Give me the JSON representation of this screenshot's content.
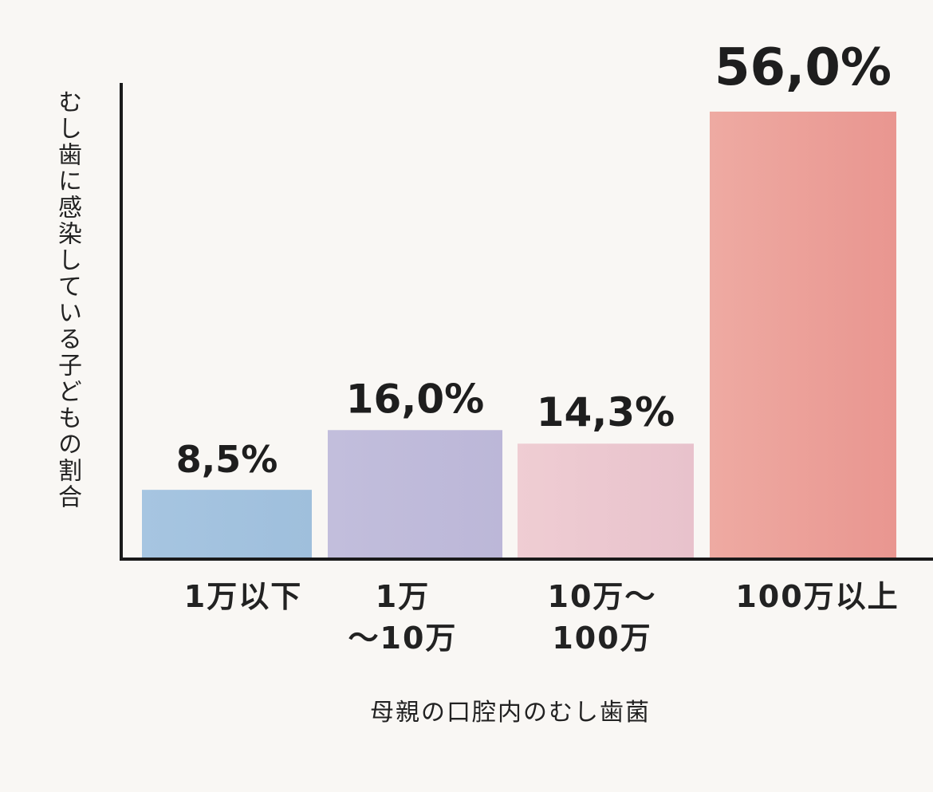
{
  "chart_data": {
    "type": "bar",
    "categories": [
      "1万以下",
      "1万\n〜10万",
      "10万〜\n100万",
      "100万以上"
    ],
    "values": [
      8.5,
      16.0,
      14.3,
      56.0
    ],
    "value_labels": [
      "8,5%",
      "16,0%",
      "14,3%",
      "56,0%"
    ],
    "colors": [
      "#a3c2df",
      "#bfbbda",
      "#ebc7cf",
      "#eba19a"
    ],
    "ylabel": "むし歯に感染している子どもの割合",
    "xlabel": "母親の口腔内のむし歯菌",
    "ylim": [
      0,
      60
    ],
    "grid": false,
    "legend": "none"
  }
}
